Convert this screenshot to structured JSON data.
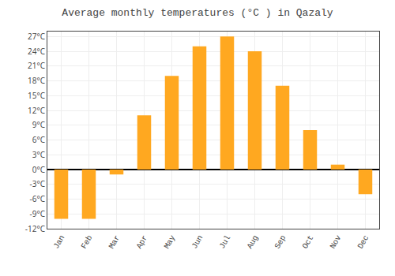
{
  "chart_data": {
    "type": "bar",
    "title": "Average monthly temperatures (°C ) in Qazaly",
    "categories": [
      "Jan",
      "Feb",
      "Mar",
      "Apr",
      "May",
      "Jun",
      "Jul",
      "Aug",
      "Sep",
      "Oct",
      "Nov",
      "Dec"
    ],
    "values": [
      -10,
      -10,
      -1,
      11,
      19,
      25,
      27,
      24,
      17,
      8,
      1,
      -5
    ],
    "color": "#FFA820",
    "ylim": [
      -12,
      28
    ],
    "yticks": [
      {
        "value": -12,
        "label": "-12°C"
      },
      {
        "value": -9,
        "label": "-9°C"
      },
      {
        "value": -6,
        "label": "-6°C"
      },
      {
        "value": -3,
        "label": "-3°C"
      },
      {
        "value": 0,
        "label": "0°C"
      },
      {
        "value": 3,
        "label": "3°C"
      },
      {
        "value": 6,
        "label": "6°C"
      },
      {
        "value": 9,
        "label": "9°C"
      },
      {
        "value": 12,
        "label": "12°C"
      },
      {
        "value": 15,
        "label": "15°C"
      },
      {
        "value": 18,
        "label": "18°C"
      },
      {
        "value": 21,
        "label": "21°C"
      },
      {
        "value": 24,
        "label": "24°C"
      },
      {
        "value": 27,
        "label": "27°C"
      }
    ],
    "grid": true
  }
}
